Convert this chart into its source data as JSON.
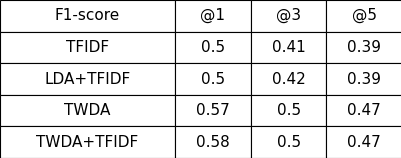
{
  "columns": [
    "F1-score",
    "@1",
    "@3",
    "@5"
  ],
  "rows": [
    [
      "TFIDF",
      "0.5",
      "0.41",
      "0.39"
    ],
    [
      "LDA+TFIDF",
      "0.5",
      "0.42",
      "0.39"
    ],
    [
      "TWDA",
      "0.57",
      "0.5",
      "0.47"
    ],
    [
      "TWDA+TFIDF",
      "0.58",
      "0.5",
      "0.47"
    ]
  ],
  "background_color": "#ffffff",
  "text_color": "#000000",
  "font_size": 11,
  "figsize": [
    4.02,
    1.58
  ],
  "dpi": 100
}
